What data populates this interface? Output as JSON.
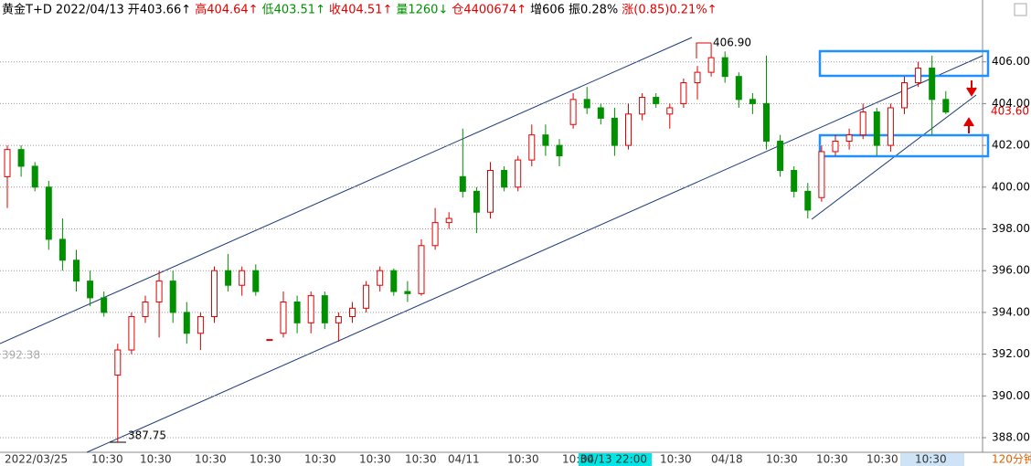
{
  "header": {
    "items": [
      "黄金T+D",
      "2022/04/13",
      "开403.66↑",
      "高404.64↑",
      "低403.51↑",
      "收404.51↑",
      "量1260↓",
      "仓4400674↑",
      "增606",
      "振0.28%",
      "涨(0.85)0.21%↑"
    ]
  },
  "chart_data": {
    "type": "candlestick",
    "open": [
      400.5,
      401.8,
      401,
      400,
      397.5,
      396.5,
      395.5,
      394.7,
      391,
      392.2,
      393.8,
      394.5,
      395.5,
      394,
      393,
      393.8,
      396,
      395.3,
      396,
      392.7,
      393,
      394.5,
      393.5,
      394.8,
      393.5,
      393.8,
      394.2,
      395.3,
      396,
      395,
      394.9,
      397.2,
      398.3,
      400.5,
      399.8,
      398.8,
      400.8,
      400,
      401.3,
      402.5,
      402,
      403,
      404.2,
      403.8,
      403.3,
      402,
      403.5,
      404.3,
      403.5,
      404,
      405,
      405.5,
      406.2,
      405.3,
      404.2,
      404,
      402.2,
      400.8,
      399.8,
      399.5,
      401.7,
      402.2,
      402.5,
      403.6,
      402,
      403.8,
      405,
      405.7,
      404.2
    ],
    "high": [
      402,
      402,
      401.2,
      400.3,
      398.5,
      397,
      396,
      395,
      392.5,
      394,
      394.8,
      396,
      396,
      394.5,
      394,
      396.2,
      396.8,
      396.2,
      396.3,
      392.7,
      395,
      394.8,
      395,
      395,
      394,
      394.5,
      395.5,
      396.2,
      396.1,
      395.5,
      397.5,
      399,
      398.8,
      402.8,
      400,
      401.2,
      401,
      401.5,
      403,
      403,
      402.3,
      404.5,
      404.8,
      404,
      403.8,
      404,
      404.5,
      404.5,
      404,
      405.2,
      405.8,
      406.9,
      406.5,
      405.5,
      404.5,
      406.3,
      402.5,
      401,
      400.2,
      402,
      402.5,
      402.8,
      404,
      403.8,
      404,
      405.3,
      406,
      406.3,
      404.6
    ],
    "low": [
      399,
      400.5,
      399.8,
      397,
      396,
      395,
      394.3,
      393.8,
      387.75,
      392,
      393.5,
      392.8,
      393.5,
      392.5,
      392.2,
      393.5,
      395,
      394.8,
      394.8,
      392.7,
      392.8,
      393,
      393,
      393.2,
      392.6,
      393.5,
      394,
      395,
      394.8,
      394.5,
      394.8,
      397,
      398,
      399.5,
      397.8,
      398.5,
      399.8,
      399.8,
      401,
      401.5,
      401,
      402.8,
      403.5,
      403,
      401.5,
      401.8,
      403.2,
      403.8,
      402.8,
      403.8,
      404.2,
      405.3,
      405,
      403.8,
      403.5,
      401.8,
      400.5,
      399.5,
      398.5,
      399.3,
      401.5,
      401.8,
      402.3,
      401.5,
      401.7,
      403.5,
      404.8,
      402.5,
      403.5
    ],
    "close": [
      401.8,
      401,
      400,
      397.5,
      396.5,
      395.5,
      394.7,
      394,
      392.2,
      393.8,
      394.5,
      395.5,
      394,
      393,
      393.8,
      396,
      395.3,
      396,
      395,
      392.7,
      394.5,
      393.5,
      394.8,
      393.5,
      393.8,
      394.2,
      395.3,
      396,
      395,
      394.9,
      397.2,
      398.3,
      398.5,
      399.8,
      398.8,
      400.8,
      400,
      401.3,
      402.5,
      402,
      401.5,
      404.2,
      403.8,
      403.3,
      402,
      403.5,
      404.3,
      404,
      403.8,
      405,
      405.5,
      406.2,
      405.3,
      404.2,
      404,
      402.2,
      400.8,
      399.8,
      398.9,
      401.7,
      402.2,
      402.5,
      403.6,
      402,
      403.8,
      405,
      405.7,
      404.2,
      403.6
    ],
    "up_color": "#e00000",
    "down_color": "#009000",
    "ylim": [
      387.3,
      408.0
    ],
    "yticks": [
      {
        "value": 388,
        "label": "388.00"
      },
      {
        "value": 390,
        "label": "390.00"
      },
      {
        "value": 392,
        "label": "392.00"
      },
      {
        "value": 394,
        "label": "394.00"
      },
      {
        "value": 396,
        "label": "396.00"
      },
      {
        "value": 398,
        "label": "398.00"
      },
      {
        "value": 400,
        "label": "400.00"
      },
      {
        "value": 402,
        "label": "402.00"
      },
      {
        "value": 404,
        "label": "404.00"
      },
      {
        "value": 406,
        "label": "406.00"
      }
    ],
    "grid": true,
    "x_labels": [
      "2022/03/25",
      "10:30",
      "10:30",
      "10:30",
      "10:30",
      "10:30",
      "10:30",
      "10:30",
      "04/11",
      "10:30",
      "10:30",
      "04/13 22:00",
      "10:30",
      "04/18",
      "10:30",
      "10:30",
      "10:30",
      "10:30",
      "120分钟"
    ],
    "annotations": [
      "406.90",
      "387.75",
      "392.38",
      "403.60"
    ]
  }
}
